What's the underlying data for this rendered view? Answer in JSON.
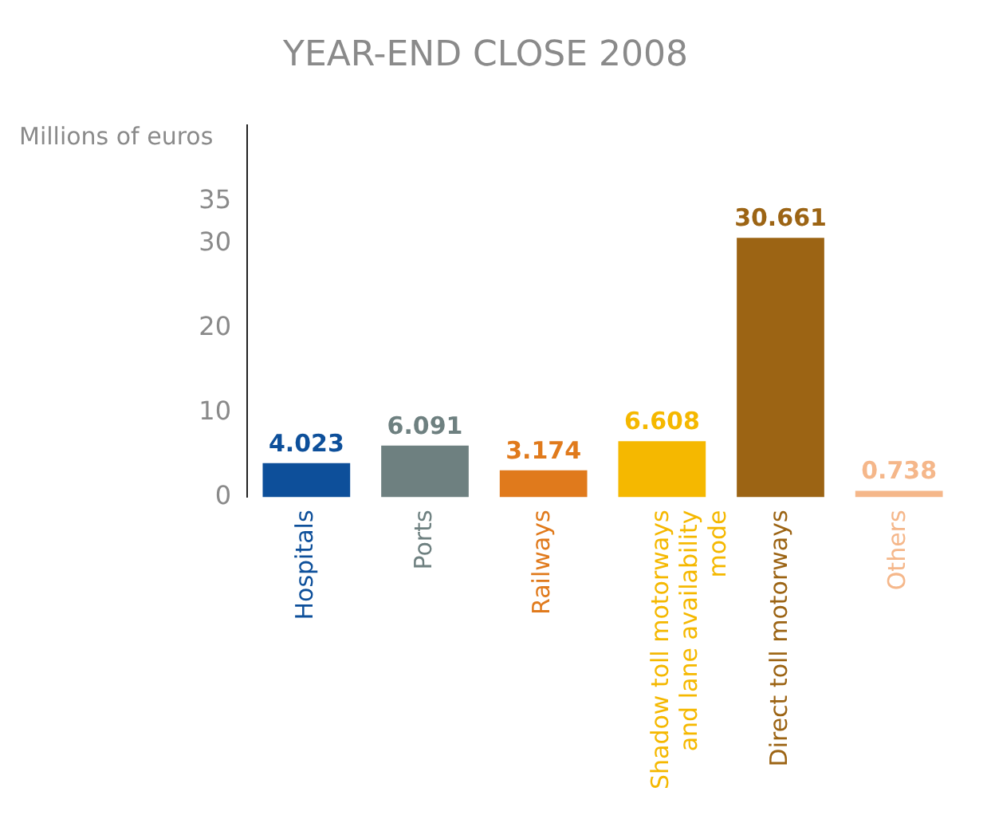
{
  "chart_data": {
    "type": "bar",
    "title": "YEAR-END CLOSE 2008",
    "ylabel": "Millions of euros",
    "categories": [
      "Hospitals",
      "Ports",
      "Railways",
      "Shadow toll motorways and lane availability mode",
      "Direct toll motorways",
      "Others"
    ],
    "values": [
      4.023,
      6.091,
      3.174,
      6.608,
      30.661,
      0.738
    ],
    "colors": [
      "#0d4f9a",
      "#6e8080",
      "#e07a1c",
      "#f5b800",
      "#9c6414",
      "#f5b78a"
    ],
    "ylim": [
      0,
      44
    ],
    "yticks": [
      0,
      10,
      20,
      30,
      35
    ],
    "grid": false,
    "legend": false,
    "data_labels": true
  }
}
